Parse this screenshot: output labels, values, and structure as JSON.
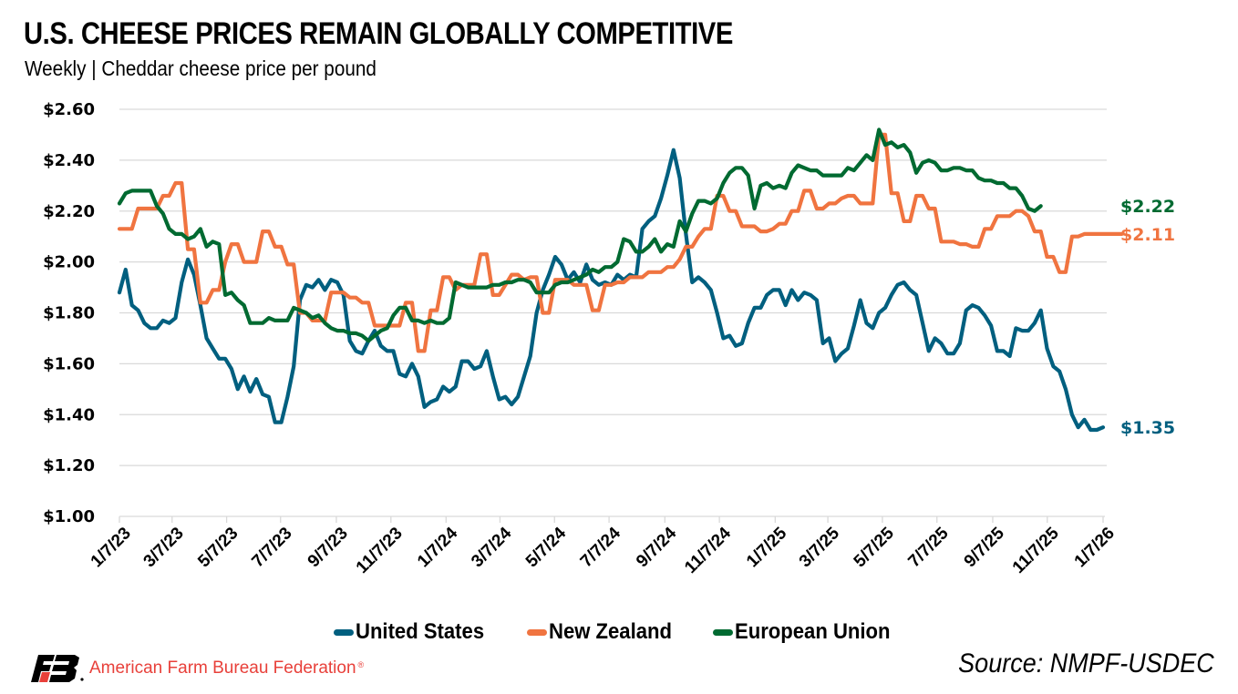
{
  "header": {
    "title": "U.S. CHEESE PRICES REMAIN GLOBALLY COMPETITIVE",
    "subtitle": "Weekly | Cheddar cheese price per pound"
  },
  "footer": {
    "organization": "American Farm Bureau Federation",
    "registered_mark": "®",
    "source": "Source: NMPF-USDEC",
    "logo_icon": "farm-bureau-fb-logo"
  },
  "chart_data": {
    "type": "line",
    "title": "U.S. CHEESE PRICES REMAIN GLOBALLY COMPETITIVE",
    "subtitle": "Weekly | Cheddar cheese price per pound",
    "xlabel": "",
    "ylabel": "",
    "x_start": "1/7/23",
    "x_end": "1/7/26",
    "x_unit": "week",
    "x_ticks": [
      "1/7/23",
      "3/7/23",
      "5/7/23",
      "7/7/23",
      "9/7/23",
      "11/7/23",
      "1/7/24",
      "3/7/24",
      "5/7/24",
      "7/7/24",
      "9/7/24",
      "11/7/24",
      "1/7/25",
      "3/7/25",
      "5/7/25",
      "7/7/25",
      "9/7/25",
      "11/7/25",
      "1/7/26"
    ],
    "x_tick_weeks": [
      0,
      8.4,
      17.1,
      25.7,
      34.6,
      43.3,
      52.1,
      60.7,
      69.4,
      78.1,
      87.0,
      95.7,
      104.6,
      113.0,
      121.7,
      130.4,
      139.3,
      148.0,
      156.9
    ],
    "y_ticks": [
      "$1.00",
      "$1.20",
      "$1.40",
      "$1.60",
      "$1.80",
      "$2.00",
      "$2.20",
      "$2.40",
      "$2.60"
    ],
    "ylim": [
      1.0,
      2.6
    ],
    "y_tick_step": 0.2,
    "grid": "horizontal",
    "legend_position": "bottom",
    "series": [
      {
        "name": "United States",
        "color": "#005f7f",
        "end_label": "$1.35",
        "values": [
          1.88,
          1.97,
          1.83,
          1.81,
          1.76,
          1.74,
          1.74,
          1.77,
          1.76,
          1.78,
          1.92,
          2.01,
          1.95,
          1.83,
          1.7,
          1.66,
          1.62,
          1.62,
          1.58,
          1.5,
          1.55,
          1.49,
          1.54,
          1.48,
          1.47,
          1.37,
          1.37,
          1.47,
          1.59,
          1.85,
          1.91,
          1.9,
          1.93,
          1.89,
          1.93,
          1.92,
          1.87,
          1.69,
          1.65,
          1.64,
          1.69,
          1.73,
          1.67,
          1.65,
          1.65,
          1.56,
          1.55,
          1.6,
          1.55,
          1.43,
          1.45,
          1.46,
          1.51,
          1.49,
          1.51,
          1.61,
          1.61,
          1.58,
          1.59,
          1.65,
          1.55,
          1.46,
          1.47,
          1.44,
          1.47,
          1.55,
          1.63,
          1.8,
          1.89,
          1.95,
          2.02,
          1.99,
          1.93,
          1.96,
          1.92,
          1.99,
          1.93,
          1.91,
          1.92,
          1.91,
          1.95,
          1.93,
          1.95,
          1.94,
          2.13,
          2.16,
          2.18,
          2.25,
          2.34,
          2.44,
          2.33,
          2.11,
          1.92,
          1.94,
          1.92,
          1.89,
          1.8,
          1.7,
          1.71,
          1.67,
          1.68,
          1.76,
          1.82,
          1.82,
          1.87,
          1.89,
          1.89,
          1.83,
          1.89,
          1.85,
          1.88,
          1.87,
          1.85,
          1.68,
          1.7,
          1.61,
          1.64,
          1.66,
          1.75,
          1.85,
          1.76,
          1.74,
          1.8,
          1.82,
          1.87,
          1.91,
          1.92,
          1.89,
          1.87,
          1.76,
          1.65,
          1.7,
          1.68,
          1.64,
          1.64,
          1.68,
          1.81,
          1.83,
          1.82,
          1.79,
          1.75,
          1.65,
          1.65,
          1.63,
          1.74,
          1.73,
          1.73,
          1.76,
          1.81,
          1.66,
          1.59,
          1.57,
          1.5,
          1.4,
          1.35,
          1.38,
          1.34,
          1.34,
          1.35
        ]
      },
      {
        "name": "New Zealand",
        "color": "#f07440",
        "end_label": "$2.11",
        "values": [
          2.13,
          2.13,
          2.13,
          2.21,
          2.21,
          2.21,
          2.21,
          2.26,
          2.26,
          2.31,
          2.31,
          2.05,
          2.05,
          1.84,
          1.84,
          1.89,
          1.89,
          2.0,
          2.07,
          2.07,
          2.0,
          2.0,
          2.0,
          2.12,
          2.12,
          2.06,
          2.06,
          1.99,
          1.99,
          1.8,
          1.8,
          1.77,
          1.77,
          1.77,
          1.88,
          1.88,
          1.88,
          1.86,
          1.86,
          1.84,
          1.84,
          1.75,
          1.75,
          1.75,
          1.75,
          1.75,
          1.84,
          1.84,
          1.65,
          1.65,
          1.81,
          1.81,
          1.94,
          1.94,
          1.89,
          1.91,
          1.91,
          1.91,
          2.03,
          2.03,
          1.87,
          1.87,
          1.91,
          1.95,
          1.95,
          1.93,
          1.94,
          1.94,
          1.8,
          1.8,
          1.93,
          1.93,
          1.93,
          1.91,
          1.91,
          1.91,
          1.81,
          1.81,
          1.91,
          1.91,
          1.92,
          1.92,
          1.94,
          1.94,
          1.94,
          1.96,
          1.96,
          1.96,
          1.98,
          1.98,
          2.01,
          2.06,
          2.06,
          2.1,
          2.13,
          2.13,
          2.26,
          2.26,
          2.2,
          2.2,
          2.14,
          2.14,
          2.14,
          2.12,
          2.12,
          2.13,
          2.15,
          2.15,
          2.2,
          2.2,
          2.28,
          2.28,
          2.21,
          2.21,
          2.23,
          2.23,
          2.25,
          2.26,
          2.26,
          2.23,
          2.23,
          2.23,
          2.5,
          2.5,
          2.27,
          2.27,
          2.16,
          2.16,
          2.26,
          2.26,
          2.21,
          2.21,
          2.08,
          2.08,
          2.08,
          2.07,
          2.07,
          2.06,
          2.06,
          2.13,
          2.13,
          2.18,
          2.18,
          2.18,
          2.2,
          2.2,
          2.18,
          2.12,
          2.12,
          2.02,
          2.02,
          1.96,
          1.96,
          2.1,
          2.1,
          2.11,
          2.11,
          2.11,
          2.11,
          2.11,
          2.11,
          2.11
        ]
      },
      {
        "name": "European Union",
        "color": "#006a31",
        "end_label": "$2.22",
        "values": [
          2.23,
          2.27,
          2.28,
          2.28,
          2.28,
          2.28,
          2.22,
          2.19,
          2.13,
          2.11,
          2.11,
          2.09,
          2.1,
          2.13,
          2.06,
          2.08,
          2.07,
          1.87,
          1.88,
          1.85,
          1.83,
          1.76,
          1.76,
          1.76,
          1.78,
          1.77,
          1.77,
          1.77,
          1.82,
          1.81,
          1.8,
          1.78,
          1.79,
          1.76,
          1.74,
          1.73,
          1.73,
          1.72,
          1.72,
          1.71,
          1.69,
          1.71,
          1.73,
          1.74,
          1.79,
          1.82,
          1.82,
          1.77,
          1.77,
          1.76,
          1.77,
          1.76,
          1.76,
          1.78,
          1.92,
          1.91,
          1.9,
          1.9,
          1.9,
          1.9,
          1.91,
          1.91,
          1.92,
          1.92,
          1.93,
          1.93,
          1.92,
          1.88,
          1.88,
          1.88,
          1.91,
          1.92,
          1.92,
          1.93,
          1.94,
          1.95,
          1.97,
          1.96,
          1.98,
          1.98,
          2.0,
          2.09,
          2.08,
          2.04,
          2.04,
          2.06,
          2.09,
          2.04,
          2.07,
          2.06,
          2.16,
          2.12,
          2.19,
          2.24,
          2.24,
          2.23,
          2.25,
          2.31,
          2.35,
          2.37,
          2.37,
          2.34,
          2.21,
          2.3,
          2.31,
          2.29,
          2.3,
          2.29,
          2.35,
          2.38,
          2.37,
          2.36,
          2.36,
          2.34,
          2.34,
          2.34,
          2.34,
          2.37,
          2.36,
          2.39,
          2.42,
          2.4,
          2.52,
          2.46,
          2.47,
          2.45,
          2.46,
          2.43,
          2.35,
          2.39,
          2.4,
          2.39,
          2.36,
          2.36,
          2.37,
          2.37,
          2.36,
          2.36,
          2.33,
          2.32,
          2.32,
          2.31,
          2.31,
          2.29,
          2.29,
          2.26,
          2.21,
          2.2,
          2.22
        ]
      }
    ]
  }
}
